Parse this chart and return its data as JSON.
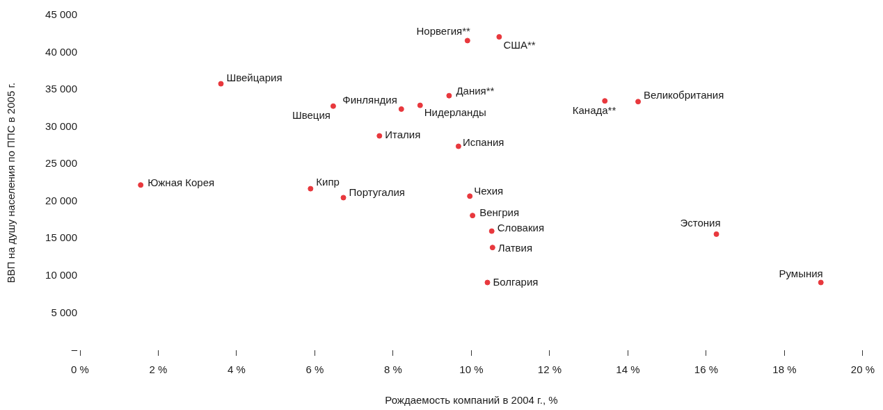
{
  "chart_data": {
    "type": "scatter",
    "xlabel": "Рождаемость компаний в 2004 г., %",
    "ylabel": "ВВП на душу населения по ППС в 2005 г.",
    "x": [
      1.55,
      3.6,
      6.47,
      5.89,
      6.73,
      7.65,
      8.21,
      8.69,
      9.43,
      9.67,
      9.9,
      10.71,
      9.96,
      10.03,
      10.52,
      10.54,
      10.41,
      13.41,
      14.26,
      16.26,
      18.93
    ],
    "series": [
      {
        "color": "#e8383d",
        "values": [
          22200,
          35800,
          32800,
          21700,
          20500,
          28800,
          32400,
          32900,
          34200,
          27400,
          41600,
          42100,
          20700,
          18100,
          16000,
          13800,
          9100,
          33500,
          33400,
          15600,
          9100
        ]
      }
    ],
    "marker": "circle",
    "grid": false,
    "legend": false,
    "xlim": [
      0,
      20
    ],
    "ylim": [
      0,
      45000
    ],
    "xticks": [
      {
        "value": 0,
        "label": "0 %"
      },
      {
        "value": 2,
        "label": "2 %"
      },
      {
        "value": 4,
        "label": "4 %"
      },
      {
        "value": 6,
        "label": "6 %"
      },
      {
        "value": 8,
        "label": "8 %"
      },
      {
        "value": 10,
        "label": "10 %"
      },
      {
        "value": 12,
        "label": "12 %"
      },
      {
        "value": 14,
        "label": "14 %"
      },
      {
        "value": 16,
        "label": "16 %"
      },
      {
        "value": 18,
        "label": "18 %"
      },
      {
        "value": 20,
        "label": "20 %"
      }
    ],
    "yticks": [
      {
        "value": 0,
        "label": "–"
      },
      {
        "value": 5000,
        "label": "5 000"
      },
      {
        "value": 10000,
        "label": "10 000"
      },
      {
        "value": 15000,
        "label": "15 000"
      },
      {
        "value": 20000,
        "label": "20 000"
      },
      {
        "value": 25000,
        "label": "25 000"
      },
      {
        "value": 30000,
        "label": "30 000"
      },
      {
        "value": 35000,
        "label": "35 000"
      },
      {
        "value": 40000,
        "label": "40 000"
      },
      {
        "value": 45000,
        "label": "45 000"
      }
    ],
    "annotations": [
      {
        "text": "Южная Корея",
        "x": 1.55,
        "y": 22200
      },
      {
        "text": "Швейцария",
        "x": 3.6,
        "y": 35800
      },
      {
        "text": "Швеция",
        "x": 6.47,
        "y": 32800
      },
      {
        "text": "Кипр",
        "x": 5.89,
        "y": 21700
      },
      {
        "text": "Португалия",
        "x": 6.73,
        "y": 20500
      },
      {
        "text": "Италия",
        "x": 7.65,
        "y": 28800
      },
      {
        "text": "Финляндия",
        "x": 8.21,
        "y": 32400
      },
      {
        "text": "Нидерланды",
        "x": 8.69,
        "y": 32900
      },
      {
        "text": "Дания**",
        "x": 9.43,
        "y": 34200
      },
      {
        "text": "Испания",
        "x": 9.67,
        "y": 27400
      },
      {
        "text": "Норвегия**",
        "x": 9.9,
        "y": 41600
      },
      {
        "text": "США**",
        "x": 10.71,
        "y": 42100
      },
      {
        "text": "Чехия",
        "x": 9.96,
        "y": 20700
      },
      {
        "text": "Венгрия",
        "x": 10.03,
        "y": 18100
      },
      {
        "text": "Словакия",
        "x": 10.52,
        "y": 16000
      },
      {
        "text": "Латвия",
        "x": 10.54,
        "y": 13800
      },
      {
        "text": "Болгария",
        "x": 10.41,
        "y": 9100
      },
      {
        "text": "Канада**",
        "x": 13.41,
        "y": 33500
      },
      {
        "text": "Великобритания",
        "x": 14.26,
        "y": 33400
      },
      {
        "text": "Эстония",
        "x": 16.26,
        "y": 15600
      },
      {
        "text": "Румыния",
        "x": 18.93,
        "y": 9100
      }
    ]
  }
}
